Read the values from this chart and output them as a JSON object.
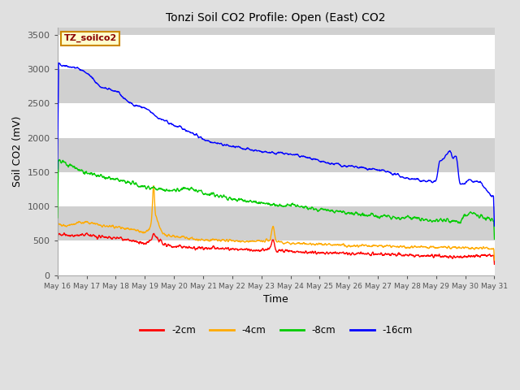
{
  "title": "Tonzi Soil CO2 Profile: Open (East) CO2",
  "xlabel": "Time",
  "ylabel": "Soil CO2 (mV)",
  "ylim": [
    0,
    3600
  ],
  "yticks": [
    0,
    500,
    1000,
    1500,
    2000,
    2500,
    3000,
    3500
  ],
  "fig_bg_color": "#e0e0e0",
  "plot_bg_color": "#e0e0e0",
  "band_white": "#ffffff",
  "band_gray": "#d0d0d0",
  "legend_label": "TZ_soilco2",
  "legend_box_color": "#ffffcc",
  "legend_box_edge": "#cc8800",
  "series_labels": [
    "-2cm",
    "-4cm",
    "-8cm",
    "-16cm"
  ],
  "series_colors": [
    "#ff0000",
    "#ffaa00",
    "#00cc00",
    "#0000ff"
  ],
  "x_start_day": 16,
  "x_end_day": 31,
  "x_tick_days": [
    16,
    17,
    18,
    19,
    20,
    21,
    22,
    23,
    24,
    25,
    26,
    27,
    28,
    29,
    30,
    31
  ],
  "x_tick_labels": [
    "May 16",
    "May 17",
    "May 18",
    "May 19",
    "May 20",
    "May 21",
    "May 22",
    "May 23",
    "May 24",
    "May 25",
    "May 26",
    "May 27",
    "May 28",
    "May 29",
    "May 30",
    "May 31"
  ]
}
